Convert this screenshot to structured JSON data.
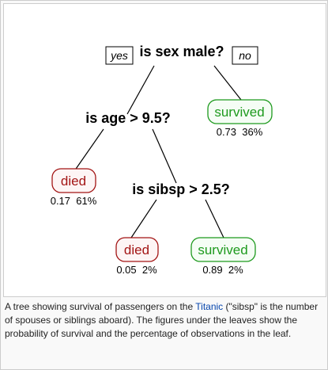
{
  "nodes": {
    "root": "is sex male?",
    "age": "is age > 9.5?",
    "sibsp": "is sibsp > 2.5?"
  },
  "branch_labels": {
    "yes": "yes",
    "no": "no"
  },
  "leaves": [
    {
      "id": "female",
      "label": "survived",
      "outcome": "survived",
      "stats": "0.73  36%",
      "probability": 0.73,
      "percent": 36
    },
    {
      "id": "old-male",
      "label": "died",
      "outcome": "died",
      "stats": "0.17  61%",
      "probability": 0.17,
      "percent": 61
    },
    {
      "id": "many-sibs",
      "label": "died",
      "outcome": "died",
      "stats": "0.05  2%",
      "probability": 0.05,
      "percent": 2
    },
    {
      "id": "few-sibs",
      "label": "survived",
      "outcome": "survived",
      "stats": "0.89  2%",
      "probability": 0.89,
      "percent": 2
    }
  ],
  "colors": {
    "died": "#a31515",
    "died_bg": "#fdf5f5",
    "survived": "#1e9a1e",
    "survived_bg": "#f5fdf5",
    "edge": "#000000",
    "link": "#0645ad"
  },
  "caption": {
    "before": "A tree showing survival of passengers on the ",
    "link": "Titanic",
    "after": " (\"sibsp\" is the number of spouses or siblings aboard). The figures under the leaves show the probability of survival and the percentage of observations in the leaf."
  }
}
